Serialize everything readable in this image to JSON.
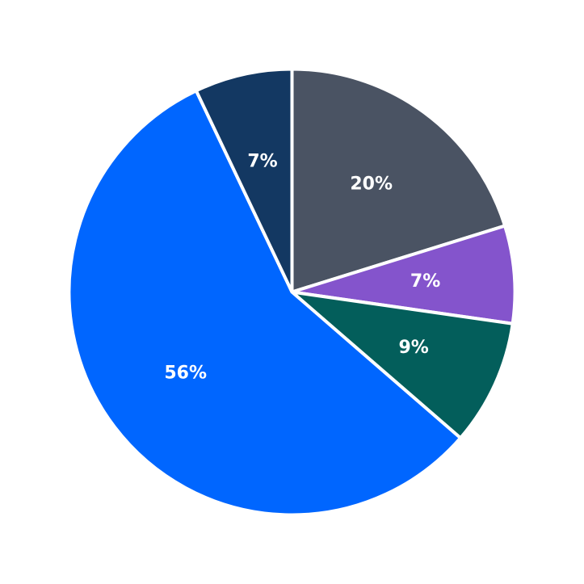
{
  "chart_data": {
    "type": "pie",
    "start_angle_deg": 90,
    "direction": "clockwise",
    "slices": [
      {
        "value": 20,
        "label": "20%",
        "color": "#4a5363"
      },
      {
        "value": 7,
        "label": "7%",
        "color": "#8454cc"
      },
      {
        "value": 9,
        "label": "9%",
        "color": "#035e5b"
      },
      {
        "value": 56,
        "label": "56%",
        "color": "#0066ff"
      },
      {
        "value": 7,
        "label": "7%",
        "color": "#133862"
      }
    ]
  }
}
